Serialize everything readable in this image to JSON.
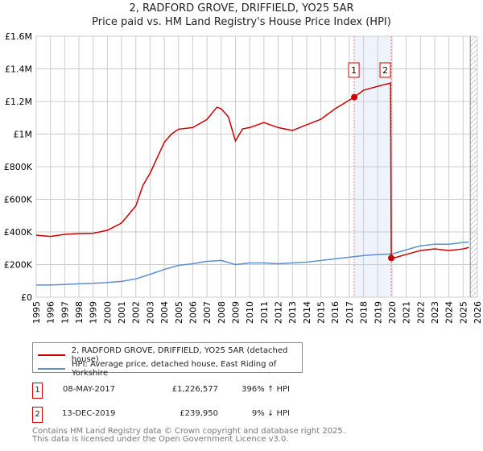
{
  "title": "2, RADFORD GROVE, DRIFFIELD, YO25 5AR",
  "subtitle": "Price paid vs. HM Land Registry's House Price Index (HPI)",
  "chart_data": {
    "type": "line",
    "xlim": [
      1995,
      2026
    ],
    "ylim": [
      0,
      1600000
    ],
    "y_ticks": [
      0,
      200000,
      400000,
      600000,
      800000,
      1000000,
      1200000,
      1400000,
      1600000
    ],
    "y_tick_labels": [
      "£0",
      "£200K",
      "£400K",
      "£600K",
      "£800K",
      "£1M",
      "£1.2M",
      "£1.4M",
      "£1.6M"
    ],
    "x_ticks": [
      "1995",
      "1996",
      "1997",
      "1998",
      "1999",
      "2000",
      "2001",
      "2002",
      "2003",
      "2004",
      "2005",
      "2006",
      "2007",
      "2008",
      "2009",
      "2010",
      "2011",
      "2012",
      "2013",
      "2014",
      "2015",
      "2016",
      "2017",
      "2018",
      "2019",
      "2020",
      "2021",
      "2022",
      "2023",
      "2024",
      "2025",
      "2026"
    ],
    "grid": true,
    "series": [
      {
        "name": "2, RADFORD GROVE, DRIFFIELD, YO25 5AR (detached house)",
        "color": "#cc0000",
        "x": [
          1995,
          1996,
          1997,
          1998,
          1999,
          2000,
          2001,
          2002,
          2002.5,
          2003,
          2004,
          2004.5,
          2005,
          2006,
          2007,
          2007.7,
          2008,
          2008.5,
          2009,
          2009.5,
          2010,
          2011,
          2012,
          2013,
          2014,
          2015,
          2016,
          2017.35,
          2018,
          2019,
          2019.9,
          2019.95,
          2020,
          2021,
          2022,
          2023,
          2024,
          2025,
          2025.4
        ],
        "y": [
          380000,
          372000,
          385000,
          390000,
          392000,
          410000,
          455000,
          560000,
          686000,
          760000,
          950000,
          1000000,
          1030000,
          1040000,
          1090000,
          1165000,
          1155000,
          1106000,
          958000,
          1032000,
          1040000,
          1071000,
          1040000,
          1022000,
          1057000,
          1091000,
          1155000,
          1226577,
          1269000,
          1293000,
          1313000,
          239950,
          237000,
          262000,
          286000,
          296000,
          286000,
          296000,
          305000
        ]
      },
      {
        "name": "HPI: Average price, detached house, East Riding of Yorkshire",
        "color": "#5b8fd4",
        "x": [
          1995,
          1996,
          1997,
          1998,
          1999,
          2000,
          2001,
          2002,
          2003,
          2004,
          2005,
          2006,
          2007,
          2008,
          2009,
          2010,
          2011,
          2012,
          2013,
          2014,
          2015,
          2016,
          2017,
          2018,
          2019,
          2020,
          2021,
          2022,
          2023,
          2024,
          2025,
          2025.4
        ],
        "y": [
          75000,
          75000,
          78000,
          82000,
          85000,
          90000,
          97000,
          112000,
          140000,
          170000,
          195000,
          205000,
          220000,
          225000,
          200000,
          210000,
          210000,
          205000,
          210000,
          215000,
          225000,
          235000,
          245000,
          255000,
          262000,
          265000,
          290000,
          315000,
          325000,
          325000,
          335000,
          338000
        ]
      }
    ],
    "sales": [
      {
        "label": "1",
        "x": 2017.35,
        "price": 1226577
      },
      {
        "label": "2",
        "x": 2019.95,
        "price": 239950
      }
    ],
    "shaded_range": [
      2017.35,
      2019.95
    ],
    "hatched_from": 2025.5
  },
  "legend": [
    "2, RADFORD GROVE, DRIFFIELD, YO25 5AR (detached house)",
    "HPI: Average price, detached house, East Riding of Yorkshire"
  ],
  "transactions": [
    {
      "n": "1",
      "date": "08-MAY-2017",
      "price": "£1,226,577",
      "hpi": "396% ↑ HPI"
    },
    {
      "n": "2",
      "date": "13-DEC-2019",
      "price": "£239,950",
      "hpi": "9% ↓ HPI"
    }
  ],
  "footer": [
    "Contains HM Land Registry data © Crown copyright and database right 2025.",
    "This data is licensed under the Open Government Licence v3.0."
  ]
}
